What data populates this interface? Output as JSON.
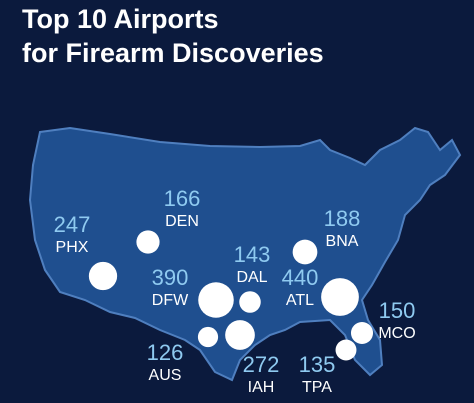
{
  "title_lines": [
    "Top 10 Airports",
    "for Firearm Discoveries"
  ],
  "airports": [
    {
      "code": "PHX",
      "count": 247
    },
    {
      "code": "DEN",
      "count": 166
    },
    {
      "code": "DAL",
      "count": 143
    },
    {
      "code": "DFW",
      "count": 390
    },
    {
      "code": "ATL",
      "count": 440
    },
    {
      "code": "BNA",
      "count": 188
    },
    {
      "code": "MCO",
      "count": 150
    },
    {
      "code": "AUS",
      "count": 126
    },
    {
      "code": "IAH",
      "count": 272
    },
    {
      "code": "TPA",
      "count": 135
    }
  ]
}
